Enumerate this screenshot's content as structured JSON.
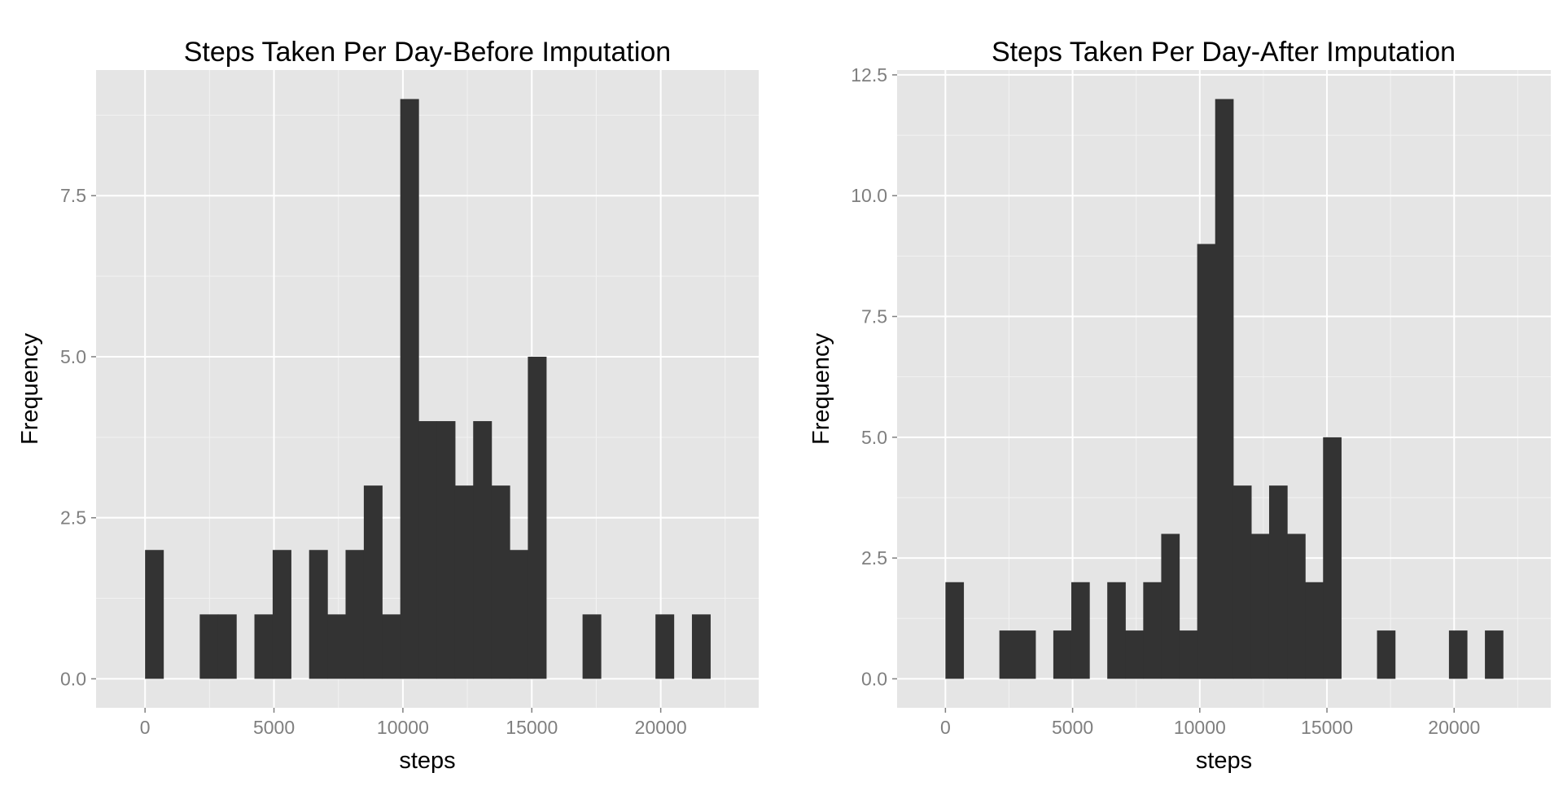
{
  "colors": {
    "panel_background": "#e5e5e5",
    "grid_major": "#ffffff",
    "grid_minor": "#f2f2f2",
    "bar_fill": "#333333",
    "tick_label": "#7f7f7f",
    "text": "#000000"
  },
  "chart_data": [
    {
      "type": "bar",
      "title": "Steps Taken Per Day-Before Imputation",
      "xlabel": "steps",
      "ylabel": "Frequency",
      "bin_width": 707,
      "xlim": [
        -1900,
        23800
      ],
      "ylim": [
        -0.45,
        9.45
      ],
      "x_ticks": [
        0,
        5000,
        10000,
        15000,
        20000
      ],
      "x_tick_labels": [
        "0",
        "5000",
        "10000",
        "15000",
        "20000"
      ],
      "y_ticks": [
        0,
        2.5,
        5,
        7.5
      ],
      "y_tick_labels": [
        "0.0",
        "2.5",
        "5.0",
        "7.5"
      ],
      "grid": true,
      "bin_starts": [
        0,
        2121,
        2828,
        4242,
        4949,
        6363,
        7070,
        7777,
        8484,
        9191,
        9898,
        10605,
        11312,
        12019,
        12726,
        13433,
        14140,
        14847,
        16968,
        19796,
        21210
      ],
      "values": [
        2,
        1,
        1,
        1,
        2,
        2,
        1,
        2,
        3,
        1,
        9,
        4,
        4,
        3,
        4,
        3,
        2,
        5,
        1,
        1,
        1
      ]
    },
    {
      "type": "bar",
      "title": "Steps Taken Per Day-After Imputation",
      "xlabel": "steps",
      "ylabel": "Frequency",
      "bin_width": 707,
      "xlim": [
        -1900,
        23800
      ],
      "ylim": [
        -0.6,
        12.6
      ],
      "x_ticks": [
        0,
        5000,
        10000,
        15000,
        20000
      ],
      "x_tick_labels": [
        "0",
        "5000",
        "10000",
        "15000",
        "20000"
      ],
      "y_ticks": [
        0,
        2.5,
        5,
        7.5,
        10,
        12.5
      ],
      "y_tick_labels": [
        "0.0",
        "2.5",
        "5.0",
        "7.5",
        "10.0",
        "12.5"
      ],
      "grid": true,
      "bin_starts": [
        0,
        2121,
        2828,
        4242,
        4949,
        6363,
        7070,
        7777,
        8484,
        9191,
        9898,
        10605,
        11312,
        12019,
        12726,
        13433,
        14140,
        14847,
        16968,
        19796,
        21210
      ],
      "values": [
        2,
        1,
        1,
        1,
        2,
        2,
        1,
        2,
        3,
        1,
        9,
        12,
        4,
        3,
        4,
        3,
        2,
        5,
        1,
        1,
        1
      ]
    }
  ]
}
